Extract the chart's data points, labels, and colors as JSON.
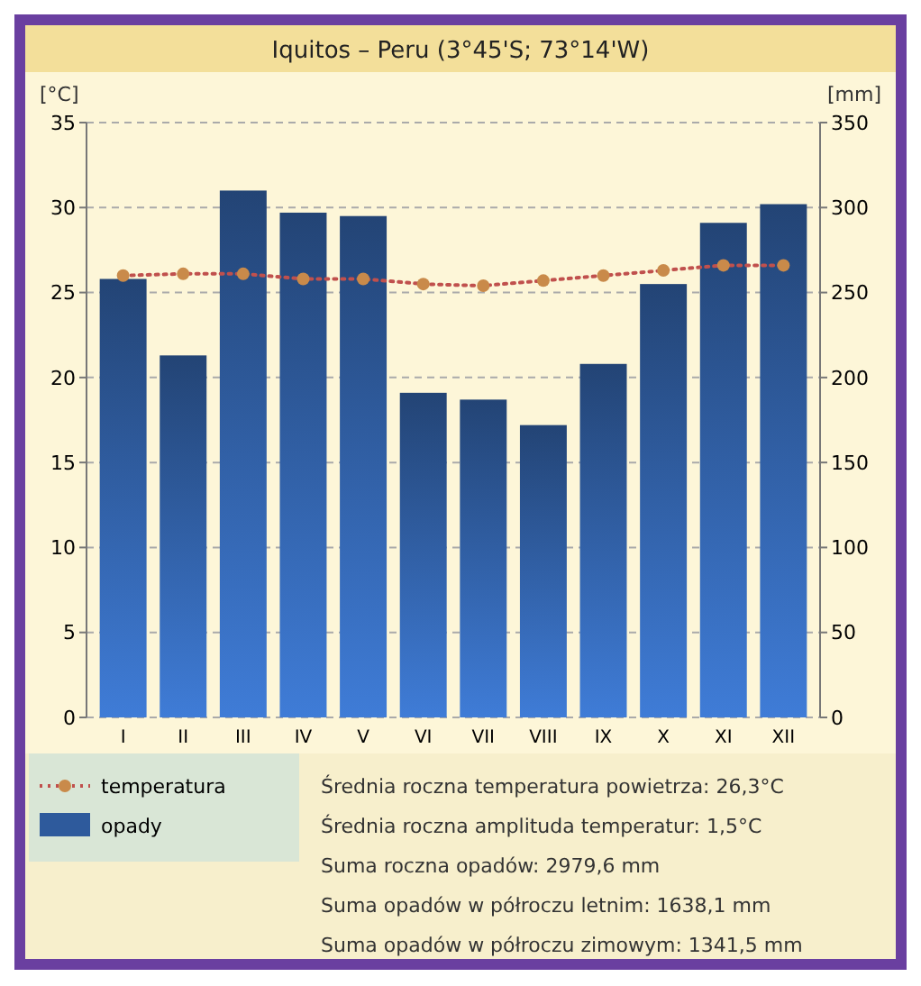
{
  "chart_data": {
    "type": "bar",
    "title": "Iquitos – Peru (3°45'S; 73°14'W)",
    "ylabel": "[°C]",
    "y2label": "[mm]",
    "categories": [
      "I",
      "II",
      "III",
      "IV",
      "V",
      "VI",
      "VII",
      "VIII",
      "IX",
      "X",
      "XI",
      "XII"
    ],
    "series": [
      {
        "name": "temperatura",
        "type": "line",
        "color": "#c0504d",
        "values": [
          26.0,
          26.1,
          26.1,
          25.8,
          25.8,
          25.5,
          25.4,
          25.7,
          26.0,
          26.3,
          26.6,
          26.6
        ]
      },
      {
        "name": "opady",
        "axis": "y2",
        "color": "#2e5a9c",
        "values": [
          258,
          213,
          310,
          297,
          295,
          191,
          187,
          172,
          208,
          255,
          291,
          302
        ]
      }
    ],
    "ylim": [
      0,
      35
    ],
    "yticks": [
      0,
      5,
      10,
      15,
      20,
      25,
      30,
      35
    ],
    "y2lim": [
      0,
      350
    ],
    "y2ticks": [
      0,
      50,
      100,
      150,
      200,
      250,
      300,
      350
    ],
    "grid": "y",
    "legend": "bottom left",
    "marker": "circle",
    "line_style": "dotted",
    "annotations": [
      "Średnia roczna temperatura powietrza: 26,3°C",
      "Średnia roczna amplituda temperatur: 1,5°C",
      "Suma roczna opadów: 2979,6 mm",
      "Suma opadów w półroczu letnim: 1638,1 mm",
      "Suma opadów w półroczu zimowym: 1341,5 mm"
    ]
  }
}
